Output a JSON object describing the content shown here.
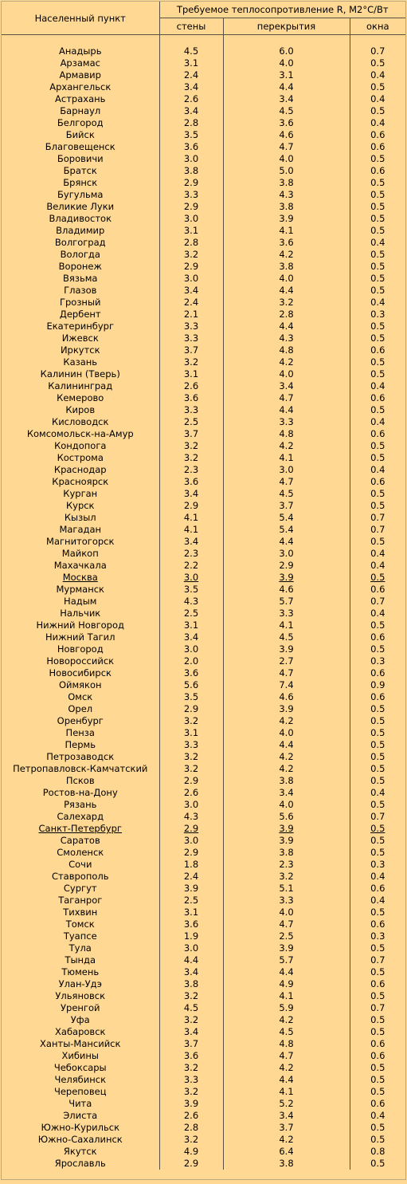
{
  "header": {
    "city_col": "Населенный пункт",
    "group": "Требуемое теплосопротивление R, М2°С/Вт",
    "walls": "стены",
    "ceilings": "перекрытия",
    "windows": "окна"
  },
  "rows": [
    {
      "city": "Анадырь",
      "walls": "4.5",
      "ceilings": "6.0",
      "windows": "0.7"
    },
    {
      "city": "Арзамас",
      "walls": "3.1",
      "ceilings": "4.0",
      "windows": "0.5"
    },
    {
      "city": "Армавир",
      "walls": "2.4",
      "ceilings": "3.1",
      "windows": "0.4"
    },
    {
      "city": "Архангельск",
      "walls": "3.4",
      "ceilings": "4.4",
      "windows": "0.5"
    },
    {
      "city": "Астрахань",
      "walls": "2.6",
      "ceilings": "3.4",
      "windows": "0.4"
    },
    {
      "city": "Барнаул",
      "walls": "3.4",
      "ceilings": "4.5",
      "windows": "0.5"
    },
    {
      "city": "Белгород",
      "walls": "2.8",
      "ceilings": "3.6",
      "windows": "0.4"
    },
    {
      "city": "Бийск",
      "walls": "3.5",
      "ceilings": "4.6",
      "windows": "0.6"
    },
    {
      "city": "Благовещенск",
      "walls": "3.6",
      "ceilings": "4.7",
      "windows": "0.6"
    },
    {
      "city": "Боровичи",
      "walls": "3.0",
      "ceilings": "4.0",
      "windows": "0.5"
    },
    {
      "city": "Братск",
      "walls": "3.8",
      "ceilings": "5.0",
      "windows": "0.6"
    },
    {
      "city": "Брянск",
      "walls": "2.9",
      "ceilings": "3.8",
      "windows": "0.5"
    },
    {
      "city": "Бугульма",
      "walls": "3.3",
      "ceilings": "4.3",
      "windows": "0.5"
    },
    {
      "city": "Великие Луки",
      "walls": "2.9",
      "ceilings": "3.8",
      "windows": "0.5"
    },
    {
      "city": "Владивосток",
      "walls": "3.0",
      "ceilings": "3.9",
      "windows": "0.5"
    },
    {
      "city": "Владимир",
      "walls": "3.1",
      "ceilings": "4.1",
      "windows": "0.5"
    },
    {
      "city": "Волгоград",
      "walls": "2.8",
      "ceilings": "3.6",
      "windows": "0.4"
    },
    {
      "city": "Вологда",
      "walls": "3.2",
      "ceilings": "4.2",
      "windows": "0.5"
    },
    {
      "city": "Воронеж",
      "walls": "2.9",
      "ceilings": "3.8",
      "windows": "0.5"
    },
    {
      "city": "Вязьма",
      "walls": "3.0",
      "ceilings": "4.0",
      "windows": "0.5"
    },
    {
      "city": "Глазов",
      "walls": "3.4",
      "ceilings": "4.4",
      "windows": "0.5"
    },
    {
      "city": "Грозный",
      "walls": "2.4",
      "ceilings": "3.2",
      "windows": "0.4"
    },
    {
      "city": "Дербент",
      "walls": "2.1",
      "ceilings": "2.8",
      "windows": "0.3"
    },
    {
      "city": "Екатеринбург",
      "walls": "3.3",
      "ceilings": "4.4",
      "windows": "0.5"
    },
    {
      "city": "Ижевск",
      "walls": "3.3",
      "ceilings": "4.3",
      "windows": "0.5"
    },
    {
      "city": "Иркутск",
      "walls": "3.7",
      "ceilings": "4.8",
      "windows": "0.6"
    },
    {
      "city": "Казань",
      "walls": "3.2",
      "ceilings": "4.2",
      "windows": "0.5"
    },
    {
      "city": "Калинин (Тверь)",
      "walls": "3.1",
      "ceilings": "4.0",
      "windows": "0.5"
    },
    {
      "city": "Калининград",
      "walls": "2.6",
      "ceilings": "3.4",
      "windows": "0.4"
    },
    {
      "city": "Кемерово",
      "walls": "3.6",
      "ceilings": "4.7",
      "windows": "0.6"
    },
    {
      "city": "Киров",
      "walls": "3.3",
      "ceilings": "4.4",
      "windows": "0.5"
    },
    {
      "city": "Кисловодск",
      "walls": "2.5",
      "ceilings": "3.3",
      "windows": "0.4"
    },
    {
      "city": "Комсомольск-на-Амур",
      "walls": "3.7",
      "ceilings": "4.8",
      "windows": "0.6"
    },
    {
      "city": "Кондопога",
      "walls": "3.2",
      "ceilings": "4.2",
      "windows": "0.5"
    },
    {
      "city": "Кострома",
      "walls": "3.2",
      "ceilings": "4.1",
      "windows": "0.5"
    },
    {
      "city": "Краснодар",
      "walls": "2.3",
      "ceilings": "3.0",
      "windows": "0.4"
    },
    {
      "city": "Красноярск",
      "walls": "3.6",
      "ceilings": "4.7",
      "windows": "0.6"
    },
    {
      "city": "Курган",
      "walls": "3.4",
      "ceilings": "4.5",
      "windows": "0.5"
    },
    {
      "city": "Курск",
      "walls": "2.9",
      "ceilings": "3.7",
      "windows": "0.5"
    },
    {
      "city": "Кызыл",
      "walls": "4.1",
      "ceilings": "5.4",
      "windows": "0.7"
    },
    {
      "city": "Магадан",
      "walls": "4.1",
      "ceilings": "5.4",
      "windows": "0.7"
    },
    {
      "city": "Магнитогорск",
      "walls": "3.4",
      "ceilings": "4.4",
      "windows": "0.5"
    },
    {
      "city": "Майкоп",
      "walls": "2.3",
      "ceilings": "3.0",
      "windows": "0.4"
    },
    {
      "city": "Махачкала",
      "walls": "2.2",
      "ceilings": "2.9",
      "windows": "0.4"
    },
    {
      "city": "Москва",
      "walls": "3.0",
      "ceilings": "3.9",
      "windows": "0.5",
      "highlight": true
    },
    {
      "city": "Мурманск",
      "walls": "3.5",
      "ceilings": "4.6",
      "windows": "0.6"
    },
    {
      "city": "Надым",
      "walls": "4.3",
      "ceilings": "5.7",
      "windows": "0.7"
    },
    {
      "city": "Нальчик",
      "walls": "2.5",
      "ceilings": "3.3",
      "windows": "0.4"
    },
    {
      "city": "Нижний Новгород",
      "walls": "3.1",
      "ceilings": "4.1",
      "windows": "0.5"
    },
    {
      "city": "Нижний Тагил",
      "walls": "3.4",
      "ceilings": "4.5",
      "windows": "0.6"
    },
    {
      "city": "Новгород",
      "walls": "3.0",
      "ceilings": "3.9",
      "windows": "0.5"
    },
    {
      "city": "Новороссийск",
      "walls": "2.0",
      "ceilings": "2.7",
      "windows": "0.3"
    },
    {
      "city": "Новосибирск",
      "walls": "3.6",
      "ceilings": "4.7",
      "windows": "0.6"
    },
    {
      "city": "Оймякон",
      "walls": "5.6",
      "ceilings": "7.4",
      "windows": "0.9"
    },
    {
      "city": "Омск",
      "walls": "3.5",
      "ceilings": "4.6",
      "windows": "0.6"
    },
    {
      "city": "Орел",
      "walls": "2.9",
      "ceilings": "3.9",
      "windows": "0.5"
    },
    {
      "city": "Оренбург",
      "walls": "3.2",
      "ceilings": "4.2",
      "windows": "0.5"
    },
    {
      "city": "Пенза",
      "walls": "3.1",
      "ceilings": "4.0",
      "windows": "0.5"
    },
    {
      "city": "Пермь",
      "walls": "3.3",
      "ceilings": "4.4",
      "windows": "0.5"
    },
    {
      "city": "Петрозаводск",
      "walls": "3.2",
      "ceilings": "4.2",
      "windows": "0.5"
    },
    {
      "city": "Петропавловск-Камчатский",
      "walls": "3.2",
      "ceilings": "4.2",
      "windows": "0.5"
    },
    {
      "city": "Псков",
      "walls": "2.9",
      "ceilings": "3.8",
      "windows": "0.5"
    },
    {
      "city": "Ростов-на-Дону",
      "walls": "2.6",
      "ceilings": "3.4",
      "windows": "0.4"
    },
    {
      "city": "Рязань",
      "walls": "3.0",
      "ceilings": "4.0",
      "windows": "0.5"
    },
    {
      "city": "Салехард",
      "walls": "4.3",
      "ceilings": "5.6",
      "windows": "0.7"
    },
    {
      "city": "Санкт-Петербург",
      "walls": "2.9",
      "ceilings": "3.9",
      "windows": "0.5",
      "highlight": true
    },
    {
      "city": "Саратов",
      "walls": "3.0",
      "ceilings": "3.9",
      "windows": "0.5"
    },
    {
      "city": "Смоленск",
      "walls": "2.9",
      "ceilings": "3.8",
      "windows": "0.5"
    },
    {
      "city": "Сочи",
      "walls": "1.8",
      "ceilings": "2.3",
      "windows": "0.3"
    },
    {
      "city": "Ставрополь",
      "walls": "2.4",
      "ceilings": "3.2",
      "windows": "0.4"
    },
    {
      "city": "Сургут",
      "walls": "3.9",
      "ceilings": "5.1",
      "windows": "0.6"
    },
    {
      "city": "Таганрог",
      "walls": "2.5",
      "ceilings": "3.3",
      "windows": "0.4"
    },
    {
      "city": "Тихвин",
      "walls": "3.1",
      "ceilings": "4.0",
      "windows": "0.5"
    },
    {
      "city": "Томск",
      "walls": "3.6",
      "ceilings": "4.7",
      "windows": "0.6"
    },
    {
      "city": "Туапсе",
      "walls": "1.9",
      "ceilings": "2.5",
      "windows": "0.3"
    },
    {
      "city": "Тула",
      "walls": "3.0",
      "ceilings": "3.9",
      "windows": "0.5"
    },
    {
      "city": "Тында",
      "walls": "4.4",
      "ceilings": "5.7",
      "windows": "0.7"
    },
    {
      "city": "Тюмень",
      "walls": "3.4",
      "ceilings": "4.4",
      "windows": "0.5"
    },
    {
      "city": "Улан-Удэ",
      "walls": "3.8",
      "ceilings": "4.9",
      "windows": "0.6"
    },
    {
      "city": "Ульяновск",
      "walls": "3.2",
      "ceilings": "4.1",
      "windows": "0.5"
    },
    {
      "city": "Уренгой",
      "walls": "4.5",
      "ceilings": "5.9",
      "windows": "0.7"
    },
    {
      "city": "Уфа",
      "walls": "3.2",
      "ceilings": "4.2",
      "windows": "0.5"
    },
    {
      "city": "Хабаровск",
      "walls": "3.4",
      "ceilings": "4.5",
      "windows": "0.5"
    },
    {
      "city": "Ханты-Мансийск",
      "walls": "3.7",
      "ceilings": "4.8",
      "windows": "0.6"
    },
    {
      "city": "Хибины",
      "walls": "3.6",
      "ceilings": "4.7",
      "windows": "0.6"
    },
    {
      "city": "Чебоксары",
      "walls": "3.2",
      "ceilings": "4.2",
      "windows": "0.5"
    },
    {
      "city": "Челябинск",
      "walls": "3.3",
      "ceilings": "4.4",
      "windows": "0.5"
    },
    {
      "city": "Череповец",
      "walls": "3.2",
      "ceilings": "4.1",
      "windows": "0.5"
    },
    {
      "city": "Чита",
      "walls": "3.9",
      "ceilings": "5.2",
      "windows": "0.6"
    },
    {
      "city": "Элиста",
      "walls": "2.6",
      "ceilings": "3.4",
      "windows": "0.4"
    },
    {
      "city": "Южно-Курильск",
      "walls": "2.8",
      "ceilings": "3.7",
      "windows": "0.5"
    },
    {
      "city": "Южно-Сахалинск",
      "walls": "3.2",
      "ceilings": "4.2",
      "windows": "0.5"
    },
    {
      "city": "Якутск",
      "walls": "4.9",
      "ceilings": "6.4",
      "windows": "0.8"
    },
    {
      "city": "Ярославль",
      "walls": "2.9",
      "ceilings": "3.8",
      "windows": "0.5"
    }
  ]
}
